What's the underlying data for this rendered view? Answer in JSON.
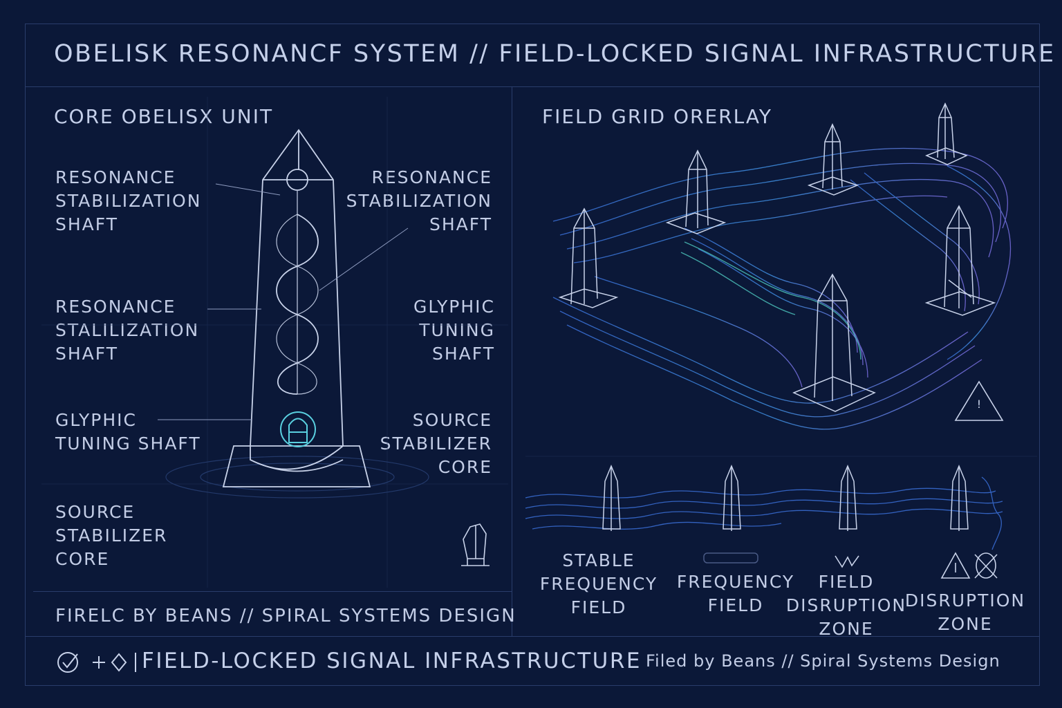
{
  "header": {
    "title": "OBELISK RESONANCF SYSTEM // FIELD-LOCKED SIGNAL INFRASTRUCTURE"
  },
  "left_panel": {
    "title": "CORE OBELISX UNIT",
    "labels": {
      "left_1": "RESONANCE\nSTABILIZATION\nSHAFT",
      "right_1": "RESONANCE\nSTABILIZATION\nSHAFT",
      "left_2": "RESONANCE\nSTALILIZATION\nSHAFT",
      "right_2": "GLYPHIC\nTUNING\nSHAFT",
      "left_3": "GLYPHIC\nTUNING SHAFT",
      "right_3": "SOURCE\nSTABILIZER\nCORE",
      "left_4": "SOURCE\nSTABILIZER\nCORE"
    },
    "footer": "FIRELC BY  BEANS // SPIRAL SYSTEMS DESIGN"
  },
  "right_panel": {
    "title": "FIELD GRID ORERLAY",
    "legend": {
      "stable": "STABLE\nFREQUENCY\nFIELD",
      "frequency": "FREQUENCY\nFIELD",
      "disruption": "FIELD\nDISRUPTION\nZONE",
      "disruption_zone": "DISRUPTION\nZONE"
    }
  },
  "bottom_bar": {
    "icons": [
      "check-circle-icon",
      "plus-icon",
      "diamond-icon"
    ],
    "main": "FIELD-LOCKED SIGNAL INFRASTRUCTURE",
    "credit": "Filed by Beans // Spiral Systems Design"
  },
  "colors": {
    "background": "#0b1838",
    "line": "#c9d3ea",
    "frame": "#2a3d6b",
    "accent_teal": "#5ad0e0",
    "wave_blue": "#3a6fd8",
    "wave_violet": "#7a6ee0"
  }
}
